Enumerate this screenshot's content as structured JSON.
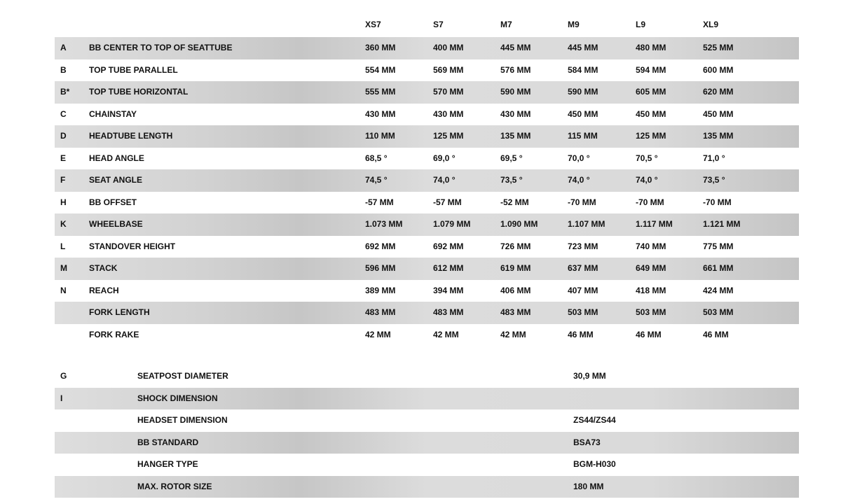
{
  "sizes": [
    "XS7",
    "S7",
    "M7",
    "M9",
    "L9",
    "XL9"
  ],
  "geometry": [
    {
      "code": "A",
      "label": "BB CENTER TO TOP OF SEATTUBE",
      "values": [
        "360 MM",
        "400 MM",
        "445 MM",
        "445 MM",
        "480 MM",
        "525 MM"
      ]
    },
    {
      "code": "B",
      "label": "TOP TUBE PARALLEL",
      "values": [
        "554 MM",
        "569 MM",
        "576 MM",
        "584 MM",
        "594 MM",
        "600 MM"
      ]
    },
    {
      "code": "B*",
      "label": "TOP TUBE HORIZONTAL",
      "values": [
        "555 MM",
        "570 MM",
        "590 MM",
        "590 MM",
        "605 MM",
        "620 MM"
      ]
    },
    {
      "code": "C",
      "label": "CHAINSTAY",
      "values": [
        "430 MM",
        "430 MM",
        "430 MM",
        "450 MM",
        "450 MM",
        "450 MM"
      ]
    },
    {
      "code": "D",
      "label": "HEADTUBE LENGTH",
      "values": [
        "110 MM",
        "125 MM",
        "135 MM",
        "115 MM",
        "125 MM",
        "135 MM"
      ]
    },
    {
      "code": "E",
      "label": "HEAD ANGLE",
      "values": [
        "68,5 °",
        "69,0 °",
        "69,5 °",
        "70,0 °",
        "70,5 °",
        "71,0 °"
      ]
    },
    {
      "code": "F",
      "label": "SEAT ANGLE",
      "values": [
        "74,5 °",
        "74,0 °",
        "73,5 °",
        "74,0 °",
        "74,0 °",
        "73,5 °"
      ]
    },
    {
      "code": "H",
      "label": "BB OFFSET",
      "values": [
        "-57 MM",
        "-57 MM",
        "-52 MM",
        "-70 MM",
        "-70 MM",
        "-70 MM"
      ]
    },
    {
      "code": "K",
      "label": "WHEELBASE",
      "values": [
        "1.073 MM",
        "1.079 MM",
        "1.090 MM",
        "1.107 MM",
        "1.117 MM",
        "1.121 MM"
      ]
    },
    {
      "code": "L",
      "label": "STANDOVER HEIGHT",
      "values": [
        "692 MM",
        "692 MM",
        "726 MM",
        "723 MM",
        "740 MM",
        "775 MM"
      ]
    },
    {
      "code": "M",
      "label": "STACK",
      "values": [
        "596 MM",
        "612 MM",
        "619 MM",
        "637 MM",
        "649 MM",
        "661 MM"
      ]
    },
    {
      "code": "N",
      "label": "REACH",
      "values": [
        "389 MM",
        "394 MM",
        "406 MM",
        "407 MM",
        "418 MM",
        "424 MM"
      ]
    },
    {
      "code": "",
      "label": "FORK LENGTH",
      "values": [
        "483 MM",
        "483 MM",
        "483 MM",
        "503 MM",
        "503 MM",
        "503 MM"
      ]
    },
    {
      "code": "",
      "label": "FORK RAKE",
      "values": [
        "42 MM",
        "42 MM",
        "42 MM",
        "46 MM",
        "46 MM",
        "46 MM"
      ]
    }
  ],
  "components": [
    {
      "code": "G",
      "label": "SEATPOST DIAMETER",
      "value": "30,9 MM"
    },
    {
      "code": "I",
      "label": "SHOCK DIMENSION",
      "value": ""
    },
    {
      "code": "",
      "label": "HEADSET DIMENSION",
      "value": "ZS44/ZS44"
    },
    {
      "code": "",
      "label": "BB STANDARD",
      "value": "BSA73"
    },
    {
      "code": "",
      "label": "HANGER TYPE",
      "value": "BGM-H030"
    },
    {
      "code": "",
      "label": "MAX. ROTOR SIZE",
      "value": "180 MM"
    }
  ]
}
